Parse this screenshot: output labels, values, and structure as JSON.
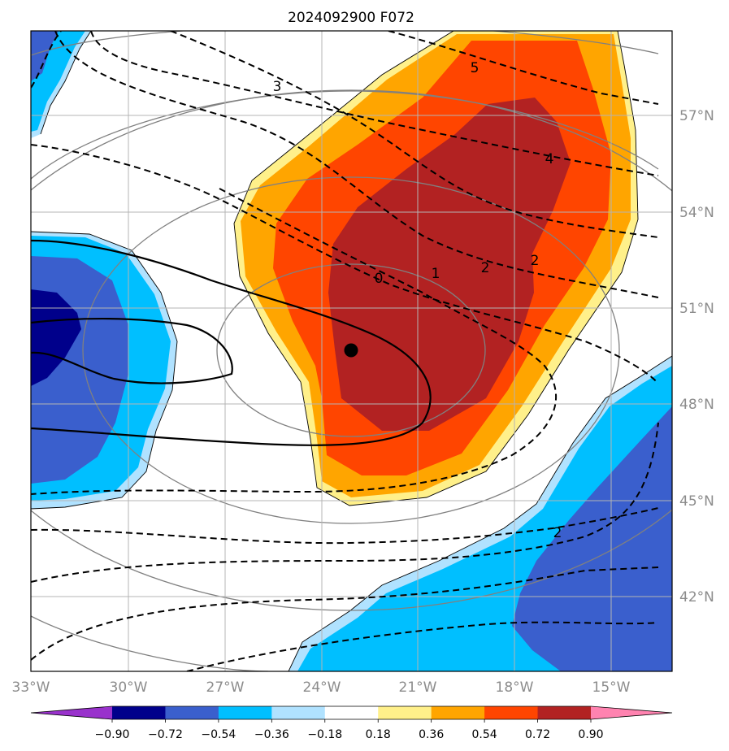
{
  "title": "2024092900 F072",
  "lon_labels": [
    "33°W",
    "30°W",
    "27°W",
    "24°W",
    "21°W",
    "18°W",
    "15°W"
  ],
  "lat_labels": [
    "57°N",
    "54°N",
    "51°N",
    "48°N",
    "45°N",
    "42°N"
  ],
  "colorbar": {
    "ticks": [
      "−0.90",
      "−0.72",
      "−0.54",
      "−0.36",
      "−0.18",
      "0.18",
      "0.36",
      "0.54",
      "0.72",
      "0.90"
    ],
    "colors": [
      "#9932cc",
      "#00008b",
      "#3a5fcd",
      "#00bfff",
      "#b0e2ff",
      "#ffffff",
      "#fff08a",
      "#ffa500",
      "#ff4500",
      "#b22222",
      "#ff83b0"
    ]
  },
  "contour_labels": [
    "3",
    "5",
    "4",
    "0",
    "1",
    "2",
    "2",
    "2"
  ],
  "marker": "storm-center"
}
